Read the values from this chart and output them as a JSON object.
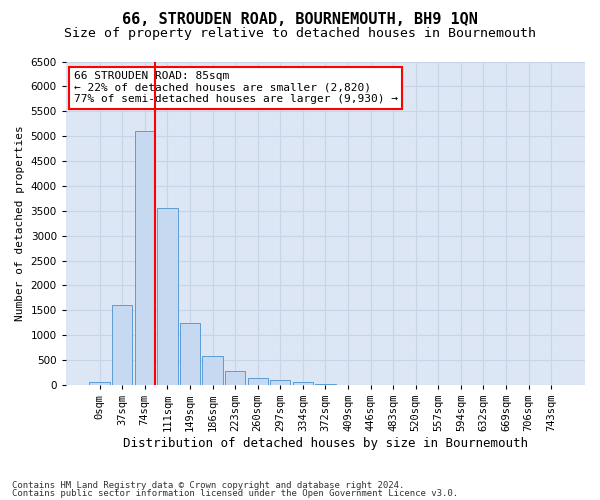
{
  "title": "66, STROUDEN ROAD, BOURNEMOUTH, BH9 1QN",
  "subtitle": "Size of property relative to detached houses in Bournemouth",
  "xlabel": "Distribution of detached houses by size in Bournemouth",
  "ylabel": "Number of detached properties",
  "footnote1": "Contains HM Land Registry data © Crown copyright and database right 2024.",
  "footnote2": "Contains public sector information licensed under the Open Government Licence v3.0.",
  "bins": [
    "0sqm",
    "37sqm",
    "74sqm",
    "111sqm",
    "149sqm",
    "186sqm",
    "223sqm",
    "260sqm",
    "297sqm",
    "334sqm",
    "372sqm",
    "409sqm",
    "446sqm",
    "483sqm",
    "520sqm",
    "557sqm",
    "594sqm",
    "632sqm",
    "669sqm",
    "706sqm",
    "743sqm"
  ],
  "values": [
    50,
    1600,
    5100,
    3550,
    1250,
    580,
    280,
    130,
    100,
    60,
    10,
    0,
    0,
    0,
    0,
    0,
    0,
    0,
    0,
    0,
    0
  ],
  "bar_color": "#c6d9f0",
  "bar_edge_color": "#5b9bd5",
  "highlight_color": "#ff0000",
  "property_line_x": 2.45,
  "annotation_text": "66 STROUDEN ROAD: 85sqm\n← 22% of detached houses are smaller (2,820)\n77% of semi-detached houses are larger (9,930) →",
  "annotation_box_color": "#ffffff",
  "annotation_box_edge": "#ff0000",
  "ylim": [
    0,
    6500
  ],
  "yticks": [
    0,
    500,
    1000,
    1500,
    2000,
    2500,
    3000,
    3500,
    4000,
    4500,
    5000,
    5500,
    6000,
    6500
  ],
  "grid_color": "#c8d4e8",
  "bg_color": "#dce6f5",
  "title_fontsize": 11,
  "subtitle_fontsize": 9.5,
  "ylabel_fontsize": 8,
  "xlabel_fontsize": 9,
  "tick_fontsize": 7.5,
  "annot_fontsize": 8,
  "footnote_fontsize": 6.5
}
